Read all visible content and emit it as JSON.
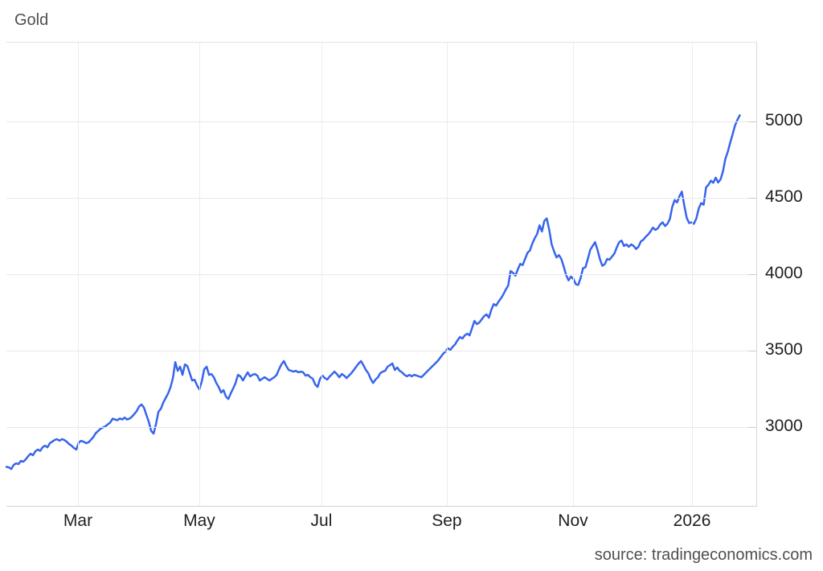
{
  "page": {
    "title": "Gold",
    "source": "source: tradingeconomics.com"
  },
  "colors": {
    "line": "#3765EB",
    "grid": "#e8e8e8",
    "axis_border": "#d2d2d2",
    "label_text": "#1f1f1f",
    "muted_text": "#4f4f4f",
    "background": "#ffffff"
  },
  "chart_data": {
    "type": "line",
    "title": "Gold",
    "xlabel": "",
    "ylabel": "",
    "legend": false,
    "grid": true,
    "y_ticks": [
      3000,
      3500,
      4000,
      4500,
      5000
    ],
    "y_axis_range": [
      2485,
      5515
    ],
    "x_ticks": [
      {
        "label": "Mar",
        "pos": 0.0954
      },
      {
        "label": "May",
        "pos": 0.2572
      },
      {
        "label": "Jul",
        "pos": 0.4201
      },
      {
        "label": "Sep",
        "pos": 0.5873
      },
      {
        "label": "Nov",
        "pos": 0.7556
      },
      {
        "label": "2026",
        "pos": 0.9143
      }
    ],
    "series": [
      {
        "name": "Gold",
        "x_start_frac": 0.0,
        "x_end_frac": 0.978,
        "values": [
          2740,
          2737,
          2726,
          2753,
          2763,
          2758,
          2779,
          2774,
          2789,
          2810,
          2826,
          2816,
          2842,
          2853,
          2845,
          2868,
          2879,
          2868,
          2895,
          2905,
          2916,
          2921,
          2911,
          2921,
          2916,
          2905,
          2889,
          2879,
          2863,
          2853,
          2900,
          2910,
          2905,
          2895,
          2900,
          2917,
          2935,
          2960,
          2975,
          2990,
          2998,
          3005,
          3018,
          3030,
          3055,
          3050,
          3045,
          3057,
          3050,
          3062,
          3050,
          3055,
          3068,
          3085,
          3105,
          3135,
          3148,
          3128,
          3080,
          3035,
          2975,
          2958,
          3020,
          3100,
          3120,
          3160,
          3190,
          3220,
          3260,
          3320,
          3425,
          3368,
          3395,
          3342,
          3410,
          3400,
          3353,
          3305,
          3310,
          3274,
          3247,
          3300,
          3379,
          3395,
          3342,
          3347,
          3326,
          3289,
          3263,
          3226,
          3242,
          3200,
          3184,
          3221,
          3253,
          3289,
          3342,
          3332,
          3305,
          3332,
          3358,
          3332,
          3342,
          3347,
          3337,
          3305,
          3316,
          3326,
          3316,
          3305,
          3316,
          3326,
          3342,
          3379,
          3411,
          3432,
          3400,
          3374,
          3368,
          3363,
          3368,
          3358,
          3363,
          3358,
          3337,
          3342,
          3326,
          3316,
          3279,
          3263,
          3316,
          3337,
          3321,
          3311,
          3332,
          3347,
          3363,
          3347,
          3326,
          3347,
          3337,
          3321,
          3337,
          3353,
          3374,
          3395,
          3416,
          3432,
          3405,
          3374,
          3353,
          3316,
          3289,
          3311,
          3326,
          3353,
          3363,
          3368,
          3395,
          3405,
          3416,
          3374,
          3390,
          3368,
          3358,
          3342,
          3332,
          3342,
          3332,
          3342,
          3337,
          3332,
          3326,
          3342,
          3358,
          3374,
          3390,
          3405,
          3421,
          3437,
          3458,
          3479,
          3495,
          3516,
          3505,
          3526,
          3542,
          3568,
          3589,
          3579,
          3600,
          3611,
          3600,
          3647,
          3695,
          3674,
          3684,
          3705,
          3726,
          3737,
          3716,
          3768,
          3805,
          3795,
          3821,
          3842,
          3868,
          3900,
          3926,
          4021,
          4010,
          3990,
          4032,
          4068,
          4060,
          4100,
          4140,
          4155,
          4200,
          4235,
          4263,
          4320,
          4280,
          4350,
          4365,
          4290,
          4195,
          4150,
          4110,
          4125,
          4100,
          4050,
          3995,
          3960,
          3985,
          3970,
          3935,
          3930,
          3975,
          4040,
          4045,
          4100,
          4160,
          4185,
          4210,
          4160,
          4100,
          4055,
          4065,
          4100,
          4095,
          4115,
          4135,
          4175,
          4210,
          4220,
          4185,
          4195,
          4180,
          4195,
          4185,
          4165,
          4180,
          4215,
          4225,
          4245,
          4260,
          4280,
          4305,
          4290,
          4300,
          4325,
          4340,
          4315,
          4330,
          4360,
          4440,
          4485,
          4470,
          4510,
          4540,
          4450,
          4370,
          4335,
          4340,
          4330,
          4365,
          4430,
          4465,
          4455,
          4568,
          4585,
          4612,
          4598,
          4632,
          4600,
          4620,
          4672,
          4755,
          4800,
          4860,
          4915,
          4972,
          5010,
          5040
        ]
      }
    ],
    "source": "source: tradingeconomics.com"
  }
}
